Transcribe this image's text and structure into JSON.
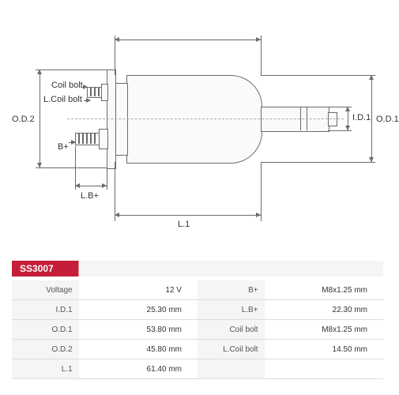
{
  "part_number": "SS3007",
  "diagram_labels": {
    "od2": "O.D.2",
    "od1": "O.D.1",
    "id1": "I.D.1",
    "l1": "L.1",
    "lb_plus": "L.B+",
    "coil_bolt": "Coil bolt",
    "l_coil_bolt": "L.Coil bolt",
    "b_plus": "B+"
  },
  "specs": {
    "rows": [
      {
        "l_label": "Voltage",
        "l_value": "12 V",
        "r_label": "B+",
        "r_value": "M8x1.25 mm"
      },
      {
        "l_label": "I.D.1",
        "l_value": "25.30 mm",
        "r_label": "L.B+",
        "r_value": "22.30 mm"
      },
      {
        "l_label": "O.D.1",
        "l_value": "53.80 mm",
        "r_label": "Coil bolt",
        "r_value": "M8x1.25 mm"
      },
      {
        "l_label": "O.D.2",
        "l_value": "45.80 mm",
        "r_label": "L.Coil bolt",
        "r_value": "14.50 mm"
      },
      {
        "l_label": "L.1",
        "l_value": "61.40 mm",
        "r_label": "",
        "r_value": ""
      }
    ]
  },
  "style": {
    "accent_color": "#c41e3a",
    "line_color": "#6b6b6b",
    "bg": "#ffffff"
  }
}
